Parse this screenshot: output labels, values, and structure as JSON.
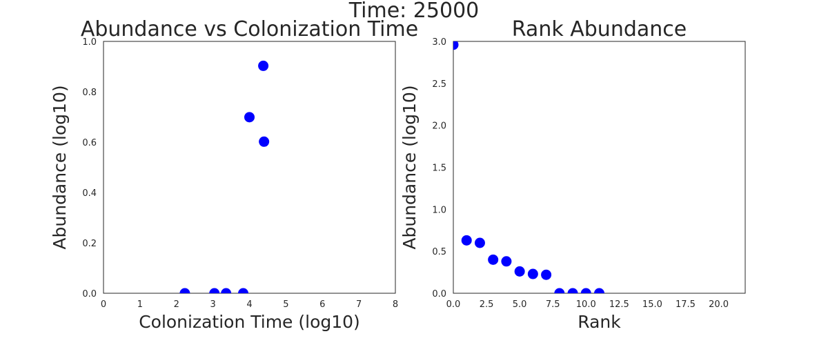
{
  "figure": {
    "suptitle": "Time: 25000"
  },
  "chart_data": [
    {
      "type": "scatter",
      "title": "Abundance vs Colonization Time",
      "xlabel": "Colonization Time (log10)",
      "ylabel": "Abundance (log10)",
      "xlim": [
        0,
        8
      ],
      "ylim": [
        0,
        1
      ],
      "xticks": [
        0,
        1,
        2,
        3,
        4,
        5,
        6,
        7,
        8
      ],
      "xtick_labels": [
        "0",
        "1",
        "2",
        "3",
        "4",
        "5",
        "6",
        "7",
        "8"
      ],
      "yticks": [
        0,
        0.2,
        0.4,
        0.6,
        0.8,
        1.0
      ],
      "ytick_labels": [
        "0.0",
        "0.2",
        "0.4",
        "0.6",
        "0.8",
        "1.0"
      ],
      "grid": false,
      "color": "#0000ff",
      "points": [
        {
          "x": 2.23,
          "y": 0.0
        },
        {
          "x": 3.04,
          "y": 0.0
        },
        {
          "x": 3.36,
          "y": 0.0
        },
        {
          "x": 3.83,
          "y": 0.0
        },
        {
          "x": 4.0,
          "y": 0.699
        },
        {
          "x": 4.38,
          "y": 0.903
        },
        {
          "x": 4.4,
          "y": 0.602
        }
      ]
    },
    {
      "type": "scatter",
      "title": "Rank Abundance",
      "xlabel": "Rank",
      "ylabel": "Abundance (log10)",
      "xlim": [
        0,
        22
      ],
      "ylim": [
        0,
        3
      ],
      "xticks": [
        0,
        2.5,
        5,
        7.5,
        10,
        12.5,
        15,
        17.5,
        20
      ],
      "xtick_labels": [
        "0.0",
        "2.5",
        "5.0",
        "7.5",
        "10.0",
        "12.5",
        "15.0",
        "17.5",
        "20.0"
      ],
      "yticks": [
        0,
        0.5,
        1,
        1.5,
        2,
        2.5,
        3
      ],
      "ytick_labels": [
        "0.0",
        "0.5",
        "1.0",
        "1.5",
        "2.0",
        "2.5",
        "3.0"
      ],
      "grid": false,
      "color": "#0000ff",
      "points": [
        {
          "x": 0,
          "y": 2.96
        },
        {
          "x": 1,
          "y": 0.63
        },
        {
          "x": 2,
          "y": 0.6
        },
        {
          "x": 3,
          "y": 0.4
        },
        {
          "x": 4,
          "y": 0.38
        },
        {
          "x": 5,
          "y": 0.26
        },
        {
          "x": 6,
          "y": 0.23
        },
        {
          "x": 7,
          "y": 0.22
        },
        {
          "x": 8,
          "y": 0.0
        },
        {
          "x": 9,
          "y": 0.0
        },
        {
          "x": 10,
          "y": 0.0
        },
        {
          "x": 11,
          "y": 0.0
        }
      ]
    }
  ]
}
